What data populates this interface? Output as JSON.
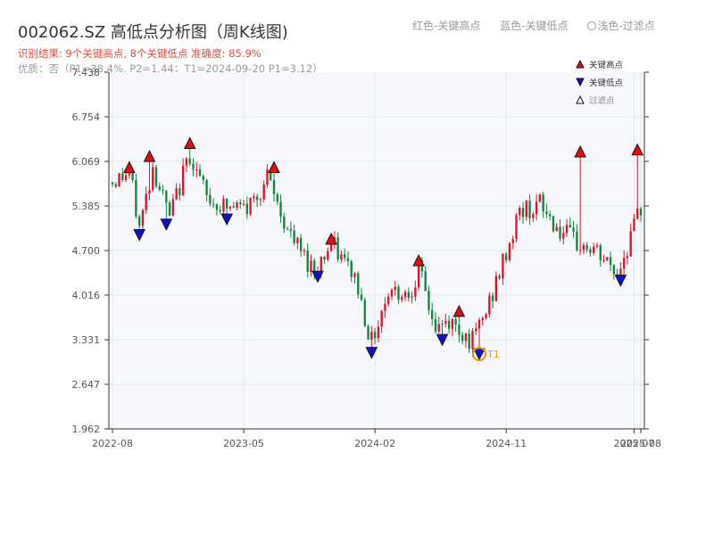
{
  "header": {
    "title": "002062.SZ 高低点分析图（周K线图)",
    "result_line": "识别结果: 9个关键高点, 8个关键低点   准确度: 85.9%",
    "quality_line": "优质：否（P1=38.4%, P2=1.44；T1=2024-09-20 P1=3.12）"
  },
  "top_legend": {
    "red_label": "红色-关键高点",
    "blue_label": "蓝色-关键低点",
    "light_label": "浅色-过滤点"
  },
  "chart_data": {
    "type": "candlestick",
    "title": "002062.SZ 高低点分析图（周K线图)",
    "y_ticks": [
      "1.962",
      "2.647",
      "3.331",
      "4.016",
      "4.700",
      "5.385",
      "6.069",
      "6.754",
      "7.438"
    ],
    "ylim": [
      1.962,
      7.438
    ],
    "x_ticks": [
      "2022-08",
      "2023-05",
      "2024-02",
      "2024-11",
      "2025-07",
      "2025-08"
    ],
    "xlim_weeks": [
      0,
      157
    ],
    "x_tick_weeks": [
      0,
      39,
      78,
      117,
      155,
      157
    ],
    "grid": true,
    "up_color": "#e0102a",
    "down_color": "#11863a",
    "legend": {
      "position": "top-right",
      "items": [
        {
          "label": "关键高点",
          "marker": "up-triangle",
          "color": "#e01010"
        },
        {
          "label": "关键低点",
          "marker": "down-triangle",
          "color": "#1010d0"
        },
        {
          "label": "过滤点",
          "marker": "up-triangle",
          "color": "#ffffff"
        }
      ]
    },
    "anchors": [
      [
        0,
        5.75
      ],
      [
        5,
        5.9
      ],
      [
        8,
        5.05
      ],
      [
        12,
        6.0
      ],
      [
        17,
        5.2
      ],
      [
        23,
        6.2
      ],
      [
        28,
        5.5
      ],
      [
        34,
        5.35
      ],
      [
        40,
        5.35
      ],
      [
        46,
        5.8
      ],
      [
        53,
        4.9
      ],
      [
        60,
        4.4
      ],
      [
        65,
        4.8
      ],
      [
        72,
        4.3
      ],
      [
        77,
        3.3
      ],
      [
        82,
        4.1
      ],
      [
        88,
        4.05
      ],
      [
        91,
        4.4
      ],
      [
        96,
        3.5
      ],
      [
        100,
        3.6
      ],
      [
        104,
        3.45
      ],
      [
        107,
        3.3
      ],
      [
        111,
        3.75
      ],
      [
        116,
        4.5
      ],
      [
        121,
        5.3
      ],
      [
        127,
        5.4
      ],
      [
        133,
        5.0
      ],
      [
        138,
        4.8
      ],
      [
        143,
        4.7
      ],
      [
        150,
        4.35
      ],
      [
        155,
        5.05
      ],
      [
        157,
        5.35
      ]
    ],
    "key_highs": [
      {
        "week": 5,
        "price": 5.98
      },
      {
        "week": 11,
        "price": 6.15
      },
      {
        "week": 23,
        "price": 6.35
      },
      {
        "week": 48,
        "price": 5.98
      },
      {
        "week": 65,
        "price": 4.88
      },
      {
        "week": 91,
        "price": 4.55
      },
      {
        "week": 103,
        "price": 3.77
      },
      {
        "week": 139,
        "price": 6.22
      },
      {
        "week": 156,
        "price": 6.25
      }
    ],
    "key_lows": [
      {
        "week": 8,
        "price": 4.94
      },
      {
        "week": 16,
        "price": 5.1
      },
      {
        "week": 34,
        "price": 5.18
      },
      {
        "week": 61,
        "price": 4.3
      },
      {
        "week": 77,
        "price": 3.13
      },
      {
        "week": 98,
        "price": 3.33
      },
      {
        "week": 109,
        "price": 3.11
      },
      {
        "week": 151,
        "price": 4.24
      }
    ],
    "t1": {
      "week": 109,
      "price": 3.11,
      "label": "T1",
      "color": "#f0900a"
    }
  }
}
